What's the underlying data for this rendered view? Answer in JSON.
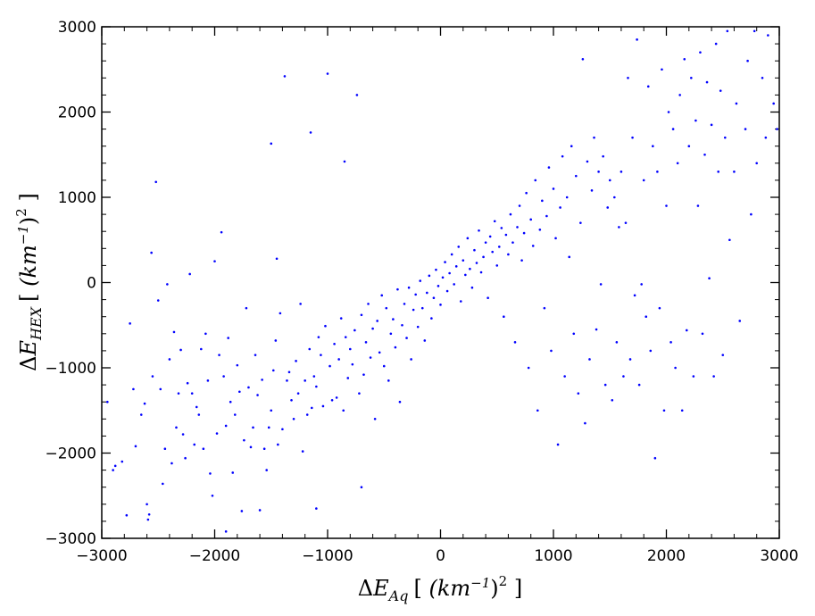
{
  "chart_data": {
    "type": "scatter",
    "title": "",
    "xlabel": "ΔE_Aq [ (km⁻¹)² ]",
    "ylabel": "ΔE_HEX [ (km⁻¹)² ]",
    "xlabel_parts": {
      "delta": "Δ",
      "var": "E",
      "sub": "Aq",
      "open": "[ ",
      "unit": "(km",
      "exp": "−1",
      "close_paren": ")",
      "sq": "2",
      "close": "  ]"
    },
    "ylabel_parts": {
      "delta": "Δ",
      "var": "E",
      "sub": "HEX",
      "open": "[ ",
      "unit": "(km",
      "exp": "−1",
      "close_paren": ")",
      "sq": "2",
      "close": "  ]"
    },
    "xlim": [
      -3000,
      3000
    ],
    "ylim": [
      -3000,
      3000
    ],
    "xticks": [
      -3000,
      -2000,
      -1000,
      0,
      1000,
      2000,
      3000
    ],
    "yticks": [
      -3000,
      -2000,
      -1000,
      0,
      1000,
      2000,
      3000
    ],
    "xtick_labels": [
      "−3000",
      "−2000",
      "−1000",
      "0",
      "1000",
      "2000",
      "3000"
    ],
    "ytick_labels": [
      "−3000",
      "−2000",
      "−1000",
      "0",
      "1000",
      "2000",
      "3000"
    ],
    "grid": false,
    "marker_color": "#0000ff",
    "series": [
      {
        "points": [
          [
            -2950,
            -1400
          ],
          [
            -2900,
            -2200
          ],
          [
            -2880,
            -2150
          ],
          [
            -2820,
            -2100
          ],
          [
            -2780,
            -2730
          ],
          [
            -2750,
            -480
          ],
          [
            -2720,
            -1250
          ],
          [
            -2700,
            -1920
          ],
          [
            -2650,
            -1550
          ],
          [
            -2620,
            -1420
          ],
          [
            -2600,
            -2600
          ],
          [
            -2590,
            -2780
          ],
          [
            -2580,
            -2720
          ],
          [
            -2560,
            350
          ],
          [
            -2550,
            -1100
          ],
          [
            -2520,
            1180
          ],
          [
            -2500,
            -210
          ],
          [
            -2480,
            -1250
          ],
          [
            -2460,
            -2360
          ],
          [
            -2440,
            -1950
          ],
          [
            -2420,
            -20
          ],
          [
            -2400,
            -900
          ],
          [
            -2380,
            -2120
          ],
          [
            -2360,
            -580
          ],
          [
            -2340,
            -1700
          ],
          [
            -2320,
            -1300
          ],
          [
            -2300,
            -790
          ],
          [
            -2280,
            -1780
          ],
          [
            -2260,
            -2060
          ],
          [
            -2240,
            -1180
          ],
          [
            -2220,
            100
          ],
          [
            -2200,
            -1300
          ],
          [
            -2180,
            -1900
          ],
          [
            -2160,
            -1460
          ],
          [
            -2140,
            -1550
          ],
          [
            -2120,
            -780
          ],
          [
            -2100,
            -1950
          ],
          [
            -2080,
            -600
          ],
          [
            -2060,
            -1150
          ],
          [
            -2040,
            -2240
          ],
          [
            -2020,
            -2500
          ],
          [
            -2000,
            250
          ],
          [
            -1980,
            -1770
          ],
          [
            -1960,
            -850
          ],
          [
            -1940,
            590
          ],
          [
            -1920,
            -1100
          ],
          [
            -1900,
            -1680
          ],
          [
            -1880,
            -650
          ],
          [
            -1860,
            -1400
          ],
          [
            -1840,
            -2230
          ],
          [
            -1820,
            -1550
          ],
          [
            -1800,
            -970
          ],
          [
            -1780,
            -1280
          ],
          [
            -1760,
            -2680
          ],
          [
            -1740,
            -1850
          ],
          [
            -1720,
            -300
          ],
          [
            -1700,
            -1230
          ],
          [
            -1680,
            -1930
          ],
          [
            -1660,
            -1700
          ],
          [
            -1640,
            -850
          ],
          [
            -1620,
            -1320
          ],
          [
            -1600,
            -2670
          ],
          [
            -1580,
            -1140
          ],
          [
            -1560,
            -1950
          ],
          [
            -1540,
            -2200
          ],
          [
            -1520,
            -1700
          ],
          [
            -1500,
            -1500
          ],
          [
            -1480,
            -1030
          ],
          [
            -1460,
            -680
          ],
          [
            -1440,
            -1900
          ],
          [
            -1420,
            -360
          ],
          [
            -1400,
            -1720
          ],
          [
            -1380,
            2420
          ],
          [
            -1360,
            -1150
          ],
          [
            -1340,
            -1050
          ],
          [
            -1320,
            -1380
          ],
          [
            -1300,
            -1600
          ],
          [
            -1280,
            -920
          ],
          [
            -1260,
            -1300
          ],
          [
            -1240,
            -250
          ],
          [
            -1220,
            -1980
          ],
          [
            -1200,
            -1150
          ],
          [
            -1180,
            -1550
          ],
          [
            -1160,
            -780
          ],
          [
            -1140,
            -1470
          ],
          [
            -1120,
            -1100
          ],
          [
            -1100,
            -1220
          ],
          [
            -1080,
            -640
          ],
          [
            -1060,
            -850
          ],
          [
            -1040,
            -1450
          ],
          [
            -1020,
            -510
          ],
          [
            -1000,
            2450
          ],
          [
            -980,
            -980
          ],
          [
            -960,
            -1380
          ],
          [
            -940,
            -720
          ],
          [
            -920,
            -1350
          ],
          [
            -900,
            -900
          ],
          [
            -880,
            -420
          ],
          [
            -860,
            -1500
          ],
          [
            -840,
            -640
          ],
          [
            -820,
            -1120
          ],
          [
            -800,
            -780
          ],
          [
            -780,
            -960
          ],
          [
            -760,
            -560
          ],
          [
            -740,
            2200
          ],
          [
            -720,
            -1300
          ],
          [
            -700,
            -380
          ],
          [
            -680,
            -1080
          ],
          [
            -660,
            -700
          ],
          [
            -640,
            -250
          ],
          [
            -620,
            -880
          ],
          [
            -600,
            -540
          ],
          [
            -580,
            -1600
          ],
          [
            -560,
            -450
          ],
          [
            -540,
            -820
          ],
          [
            -520,
            -150
          ],
          [
            -500,
            -980
          ],
          [
            -480,
            -300
          ],
          [
            -460,
            -1150
          ],
          [
            -440,
            -600
          ],
          [
            -420,
            -430
          ],
          [
            -400,
            -760
          ],
          [
            -380,
            -80
          ],
          [
            -360,
            -1400
          ],
          [
            -340,
            -500
          ],
          [
            -320,
            -250
          ],
          [
            -300,
            -650
          ],
          [
            -280,
            -60
          ],
          [
            -260,
            -900
          ],
          [
            -240,
            -320
          ],
          [
            -220,
            -140
          ],
          [
            -200,
            -520
          ],
          [
            -180,
            20
          ],
          [
            -160,
            -300
          ],
          [
            -140,
            -680
          ],
          [
            -120,
            -120
          ],
          [
            -100,
            80
          ],
          [
            -80,
            -420
          ],
          [
            -60,
            -180
          ],
          [
            -40,
            150
          ],
          [
            -20,
            -40
          ],
          [
            0,
            -260
          ],
          [
            20,
            60
          ],
          [
            40,
            240
          ],
          [
            60,
            -100
          ],
          [
            80,
            110
          ],
          [
            100,
            330
          ],
          [
            120,
            -20
          ],
          [
            140,
            190
          ],
          [
            160,
            420
          ],
          [
            180,
            -220
          ],
          [
            200,
            260
          ],
          [
            220,
            90
          ],
          [
            240,
            520
          ],
          [
            260,
            160
          ],
          [
            280,
            -60
          ],
          [
            300,
            380
          ],
          [
            320,
            230
          ],
          [
            340,
            610
          ],
          [
            360,
            120
          ],
          [
            380,
            300
          ],
          [
            400,
            470
          ],
          [
            420,
            -180
          ],
          [
            440,
            540
          ],
          [
            460,
            360
          ],
          [
            480,
            720
          ],
          [
            500,
            200
          ],
          [
            520,
            420
          ],
          [
            540,
            640
          ],
          [
            560,
            -400
          ],
          [
            580,
            560
          ],
          [
            600,
            330
          ],
          [
            620,
            800
          ],
          [
            640,
            470
          ],
          [
            660,
            -700
          ],
          [
            680,
            650
          ],
          [
            700,
            900
          ],
          [
            720,
            260
          ],
          [
            740,
            580
          ],
          [
            760,
            1050
          ],
          [
            780,
            -1000
          ],
          [
            800,
            740
          ],
          [
            820,
            430
          ],
          [
            840,
            1200
          ],
          [
            860,
            -1500
          ],
          [
            880,
            620
          ],
          [
            900,
            960
          ],
          [
            920,
            -300
          ],
          [
            940,
            780
          ],
          [
            960,
            1350
          ],
          [
            980,
            -800
          ],
          [
            1000,
            1100
          ],
          [
            1020,
            520
          ],
          [
            1040,
            -1900
          ],
          [
            1060,
            880
          ],
          [
            1080,
            1480
          ],
          [
            1100,
            -1100
          ],
          [
            1120,
            1000
          ],
          [
            1140,
            300
          ],
          [
            1160,
            1600
          ],
          [
            1180,
            -600
          ],
          [
            1200,
            1250
          ],
          [
            1220,
            -1300
          ],
          [
            1240,
            700
          ],
          [
            1260,
            2620
          ],
          [
            1280,
            -1650
          ],
          [
            1300,
            1420
          ],
          [
            1320,
            -900
          ],
          [
            1340,
            1080
          ],
          [
            1360,
            1700
          ],
          [
            1380,
            -550
          ],
          [
            1400,
            1300
          ],
          [
            1420,
            -20
          ],
          [
            1440,
            1480
          ],
          [
            1460,
            -1200
          ],
          [
            1480,
            880
          ],
          [
            1500,
            1200
          ],
          [
            1520,
            -1380
          ],
          [
            1540,
            1000
          ],
          [
            1560,
            -700
          ],
          [
            1580,
            650
          ],
          [
            1600,
            1300
          ],
          [
            1620,
            -1100
          ],
          [
            1640,
            700
          ],
          [
            1660,
            2400
          ],
          [
            1680,
            -900
          ],
          [
            1700,
            1700
          ],
          [
            1720,
            -150
          ],
          [
            1740,
            2850
          ],
          [
            1760,
            -1200
          ],
          [
            1780,
            -20
          ],
          [
            1800,
            1200
          ],
          [
            1820,
            -400
          ],
          [
            1840,
            2300
          ],
          [
            1860,
            -800
          ],
          [
            1880,
            1600
          ],
          [
            1900,
            -2060
          ],
          [
            1920,
            1300
          ],
          [
            1940,
            -300
          ],
          [
            1960,
            2500
          ],
          [
            1980,
            -1500
          ],
          [
            2000,
            900
          ],
          [
            2020,
            2000
          ],
          [
            2040,
            -700
          ],
          [
            2060,
            1800
          ],
          [
            2080,
            -1000
          ],
          [
            2100,
            1400
          ],
          [
            2120,
            2200
          ],
          [
            2140,
            -1500
          ],
          [
            2160,
            2620
          ],
          [
            2180,
            -560
          ],
          [
            2200,
            1600
          ],
          [
            2220,
            2400
          ],
          [
            2240,
            -1100
          ],
          [
            2260,
            1900
          ],
          [
            2280,
            900
          ],
          [
            2300,
            2700
          ],
          [
            2320,
            -600
          ],
          [
            2340,
            1500
          ],
          [
            2360,
            2350
          ],
          [
            2380,
            50
          ],
          [
            2400,
            1850
          ],
          [
            2420,
            -1100
          ],
          [
            2440,
            2800
          ],
          [
            2460,
            1300
          ],
          [
            2480,
            2250
          ],
          [
            2500,
            -850
          ],
          [
            2520,
            1700
          ],
          [
            2540,
            2950
          ],
          [
            2560,
            500
          ],
          [
            2600,
            1300
          ],
          [
            2620,
            2100
          ],
          [
            2650,
            -450
          ],
          [
            2700,
            1800
          ],
          [
            2720,
            2600
          ],
          [
            2750,
            800
          ],
          [
            2780,
            2950
          ],
          [
            2800,
            1400
          ],
          [
            2850,
            2400
          ],
          [
            2880,
            1700
          ],
          [
            2900,
            2900
          ],
          [
            2950,
            2100
          ],
          [
            2980,
            1800
          ],
          [
            -1900,
            -2920
          ],
          [
            -1500,
            1630
          ],
          [
            -1450,
            280
          ],
          [
            -1150,
            1760
          ],
          [
            -1100,
            -2650
          ],
          [
            -850,
            1420
          ],
          [
            -700,
            -2400
          ]
        ]
      }
    ]
  }
}
